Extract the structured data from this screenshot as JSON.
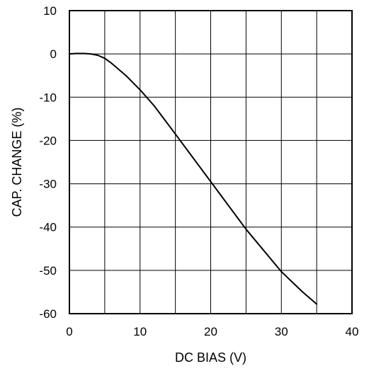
{
  "chart_data": {
    "type": "line",
    "title": "",
    "xlabel": "DC BIAS (V)",
    "ylabel": "CAP. CHANGE (%)",
    "xlim": [
      0,
      40
    ],
    "ylim": [
      -60,
      10
    ],
    "x_ticks": [
      "0",
      "10",
      "20",
      "30",
      "40"
    ],
    "y_ticks": [
      "10",
      "0",
      "-10",
      "-20",
      "-30",
      "-40",
      "-50",
      "-60"
    ],
    "x_grid_step": 5,
    "y_grid_step": 10,
    "grid": true,
    "legend": "none",
    "series": [
      {
        "x": [
          0,
          1,
          2,
          3,
          4,
          5,
          6,
          8,
          10,
          12,
          15,
          20,
          25,
          30,
          33,
          35
        ],
        "y": [
          0,
          0.1,
          0.1,
          0,
          -0.3,
          -1,
          -2.2,
          -5,
          -8.3,
          -12,
          -18.5,
          -29.5,
          -40.5,
          -50.3,
          -55,
          -57.8
        ]
      }
    ]
  }
}
